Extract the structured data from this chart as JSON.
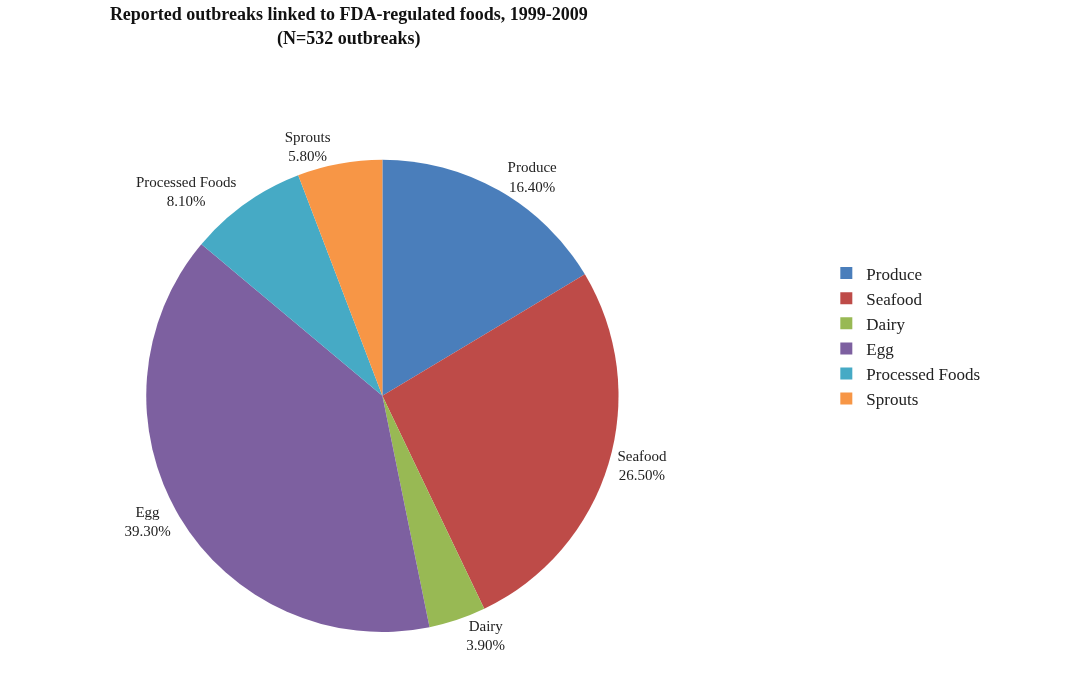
{
  "chart_data": {
    "type": "pie",
    "title": "Reported outbreaks linked to FDA-regulated foods, 1999-2009",
    "subtitle": "(N=532 outbreaks)",
    "categories": [
      "Produce",
      "Seafood",
      "Dairy",
      "Egg",
      "Processed Foods",
      "Sprouts"
    ],
    "values": [
      16.4,
      26.5,
      3.9,
      39.3,
      8.1,
      5.8
    ],
    "value_labels": [
      "16.40%",
      "26.50%",
      "3.90%",
      "39.30%",
      "8.10%",
      "5.80%"
    ],
    "colors": [
      "#4a7ebb",
      "#be4b48",
      "#98b954",
      "#7d60a0",
      "#46aac5",
      "#f79646"
    ],
    "legend": "right"
  }
}
